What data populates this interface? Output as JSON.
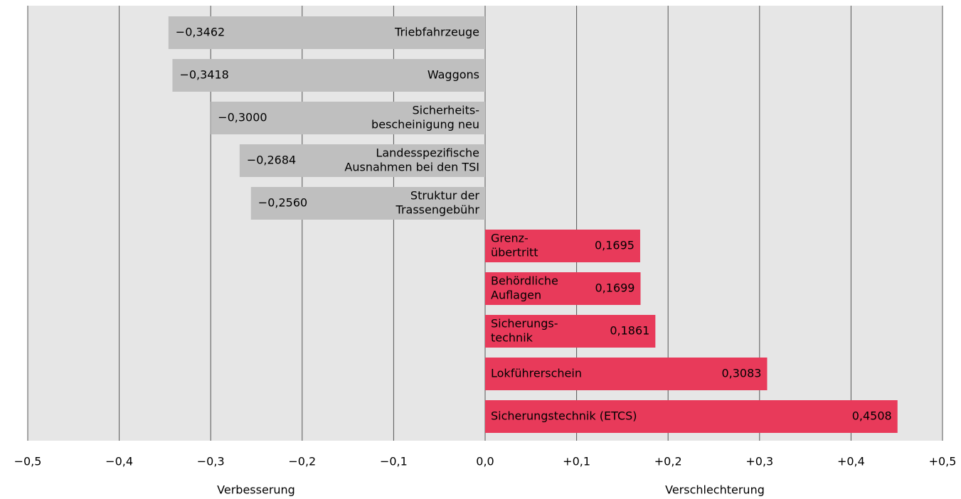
{
  "chart_data": {
    "type": "bar",
    "orientation": "horizontal",
    "categories": [
      [
        "Triebfahrzeuge"
      ],
      [
        "Waggons"
      ],
      [
        "Sicherheits-",
        "bescheinigung neu"
      ],
      [
        "Landesspezifische",
        "Ausnahmen bei den TSI"
      ],
      [
        "Struktur der",
        "Trassengebühr"
      ],
      [
        "Grenz-",
        "übertritt"
      ],
      [
        "Behördliche",
        "Auflagen"
      ],
      [
        "Sicherungs-",
        "technik"
      ],
      [
        "Lokführerschein"
      ],
      [
        "Sicherungstechnik (ETCS)"
      ]
    ],
    "values": [
      -0.3462,
      -0.3418,
      -0.3,
      -0.2684,
      -0.256,
      0.1695,
      0.1699,
      0.1861,
      0.3083,
      0.4508
    ],
    "value_labels": [
      "−0,3462",
      "−0,3418",
      "−0,3000",
      "−0,2684",
      "−0,2560",
      "0,1695",
      "0,1699",
      "0,1861",
      "0,3083",
      "0,4508"
    ],
    "negative_color": "#bfbfbf",
    "positive_color": "#e83a5a",
    "xlim": [
      -0.5,
      0.5
    ],
    "xticks": [
      {
        "value": -0.5,
        "label": "−0,5"
      },
      {
        "value": -0.4,
        "label": "−0,4"
      },
      {
        "value": -0.3,
        "label": "−0,3"
      },
      {
        "value": -0.2,
        "label": "−0,2"
      },
      {
        "value": -0.1,
        "label": "−0,1"
      },
      {
        "value": 0,
        "label": "0,0"
      },
      {
        "value": 0.1,
        "label": "+0,1"
      },
      {
        "value": 0.2,
        "label": "+0,2"
      },
      {
        "value": 0.3,
        "label": "+0,3"
      },
      {
        "value": 0.4,
        "label": "+0,4"
      },
      {
        "value": 0.5,
        "label": "+0,5"
      }
    ],
    "axis_labels": [
      "Verbesserung",
      "Verschlechterung"
    ],
    "grid": true
  }
}
